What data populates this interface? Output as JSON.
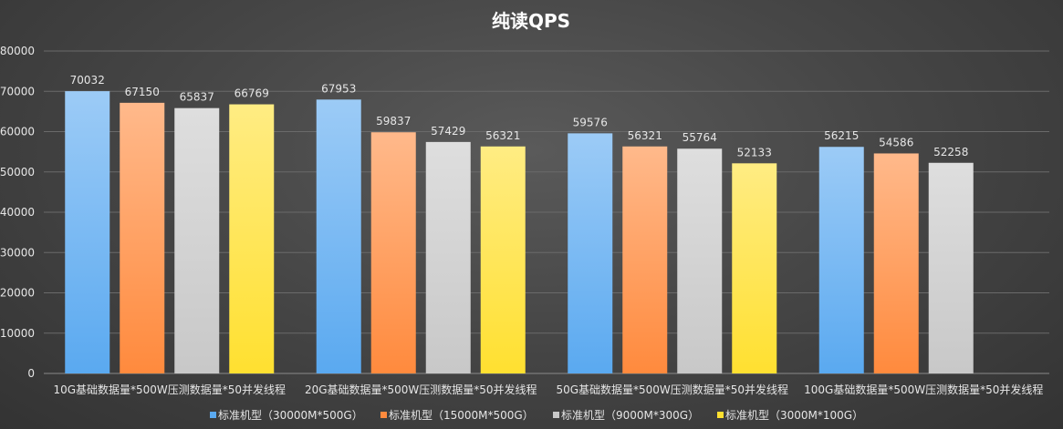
{
  "chart_data": {
    "type": "bar",
    "title": "纯读QPS",
    "xlabel": "",
    "ylabel": "",
    "ylim": [
      0,
      80000
    ],
    "yticks": [
      0,
      10000,
      20000,
      30000,
      40000,
      50000,
      60000,
      70000,
      80000
    ],
    "grid": true,
    "legend_position": "bottom",
    "categories": [
      "10G基础数据量*500W压测数据量*50并发线程",
      "20G基础数据量*500W压测数据量*50并发线程",
      "50G基础数据量*500W压测数据量*50并发线程",
      "100G基础数据量*500W压测数据量*50并发线程"
    ],
    "series": [
      {
        "name": "标准机型（30000M*500G）",
        "color": "#5aa9f0",
        "values": [
          70032,
          67953,
          59576,
          56215
        ]
      },
      {
        "name": "标准机型（15000M*500G）",
        "color": "#ff8a3d",
        "values": [
          67150,
          59837,
          56321,
          54586
        ]
      },
      {
        "name": "标准机型（9000M*300G）",
        "color": "#c8c8c8",
        "values": [
          65837,
          57429,
          55764,
          52258
        ]
      },
      {
        "name": "标准机型（3000M*100G）",
        "color": "#ffe030",
        "values": [
          66769,
          56321,
          52133,
          null
        ]
      }
    ]
  }
}
